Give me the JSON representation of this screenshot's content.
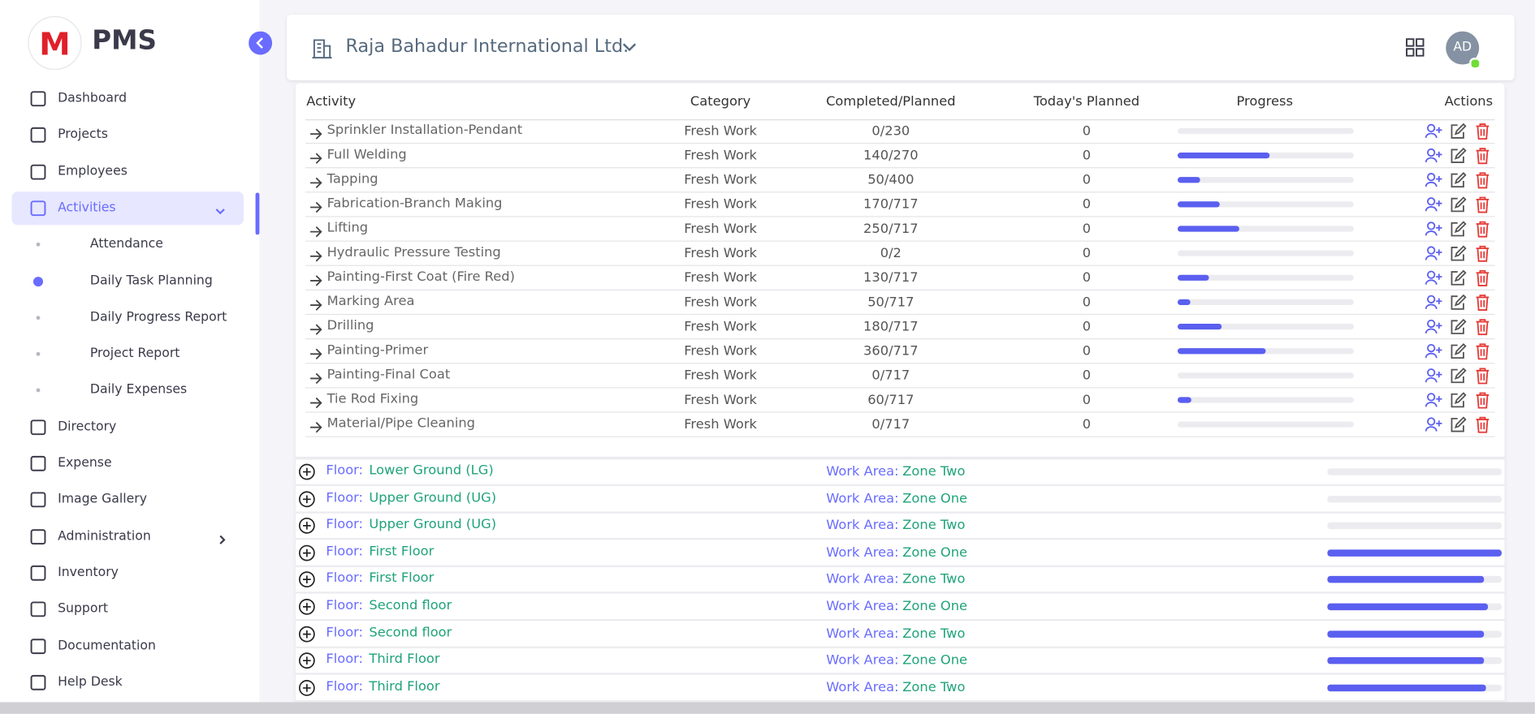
{
  "sidebar": {
    "brand": "PMS",
    "menu": [
      {
        "label": "Dashboard"
      },
      {
        "label": "Projects"
      },
      {
        "label": "Employees"
      },
      {
        "label": "Activities",
        "children": [
          {
            "label": "Attendance"
          },
          {
            "label": "Daily Task Planning"
          },
          {
            "label": "Daily Progress Report"
          },
          {
            "label": "Project Report"
          },
          {
            "label": "Daily Expenses"
          }
        ]
      },
      {
        "label": "Directory"
      },
      {
        "label": "Expense"
      },
      {
        "label": "Image Gallery"
      },
      {
        "label": "Administration"
      },
      {
        "label": "Inventory"
      },
      {
        "label": "Support"
      },
      {
        "label": "Documentation"
      },
      {
        "label": "Help Desk"
      }
    ]
  },
  "header": {
    "company": "Raja Bahadur International Ltd.",
    "avatar": "AD"
  },
  "table": {
    "columns": [
      "Activity",
      "Category",
      "Completed/Planned",
      "Today's Planned",
      "Progress",
      "Actions"
    ],
    "rows": [
      {
        "activity": "Sprinkler Installation-Pendant",
        "category": "Fresh Work",
        "completed_planned": "0/230",
        "todays_planned": 0,
        "progress": 0
      },
      {
        "activity": "Full Welding",
        "category": "Fresh Work",
        "completed_planned": "140/270",
        "todays_planned": 0,
        "progress": 52
      },
      {
        "activity": "Tapping",
        "category": "Fresh Work",
        "completed_planned": "50/400",
        "todays_planned": 0,
        "progress": 12.5
      },
      {
        "activity": "Fabrication-Branch Making",
        "category": "Fresh Work",
        "completed_planned": "170/717",
        "todays_planned": 0,
        "progress": 24
      },
      {
        "activity": "Lifting",
        "category": "Fresh Work",
        "completed_planned": "250/717",
        "todays_planned": 0,
        "progress": 35
      },
      {
        "activity": "Hydraulic Pressure Testing",
        "category": "Fresh Work",
        "completed_planned": "0/2",
        "todays_planned": 0,
        "progress": 0
      },
      {
        "activity": "Painting-First Coat (Fire Red)",
        "category": "Fresh Work",
        "completed_planned": "130/717",
        "todays_planned": 0,
        "progress": 18
      },
      {
        "activity": "Marking Area",
        "category": "Fresh Work",
        "completed_planned": "50/717",
        "todays_planned": 0,
        "progress": 7
      },
      {
        "activity": "Drilling",
        "category": "Fresh Work",
        "completed_planned": "180/717",
        "todays_planned": 0,
        "progress": 25
      },
      {
        "activity": "Painting-Primer",
        "category": "Fresh Work",
        "completed_planned": "360/717",
        "todays_planned": 0,
        "progress": 50
      },
      {
        "activity": "Painting-Final Coat",
        "category": "Fresh Work",
        "completed_planned": "0/717",
        "todays_planned": 0,
        "progress": 0
      },
      {
        "activity": "Tie Rod Fixing",
        "category": "Fresh Work",
        "completed_planned": "60/717",
        "todays_planned": 0,
        "progress": 8
      },
      {
        "activity": "Material/Pipe Cleaning",
        "category": "Fresh Work",
        "completed_planned": "0/717",
        "todays_planned": 0,
        "progress": 0
      }
    ]
  },
  "floors": {
    "floor_label": "Floor:",
    "work_area_label": "Work Area:",
    "rows": [
      {
        "floor": "Lower Ground (LG)",
        "work_area": "Zone Two",
        "progress": 0
      },
      {
        "floor": "Upper Ground (UG)",
        "work_area": "Zone One",
        "progress": 0
      },
      {
        "floor": "Upper Ground (UG)",
        "work_area": "Zone Two",
        "progress": 0
      },
      {
        "floor": "First Floor",
        "work_area": "Zone One",
        "progress": 100
      },
      {
        "floor": "First Floor",
        "work_area": "Zone Two",
        "progress": 90
      },
      {
        "floor": "Second floor",
        "work_area": "Zone One",
        "progress": 92
      },
      {
        "floor": "Second floor",
        "work_area": "Zone Two",
        "progress": 90
      },
      {
        "floor": "Third Floor",
        "work_area": "Zone One",
        "progress": 90
      },
      {
        "floor": "Third Floor",
        "work_area": "Zone Two",
        "progress": 91
      }
    ]
  }
}
